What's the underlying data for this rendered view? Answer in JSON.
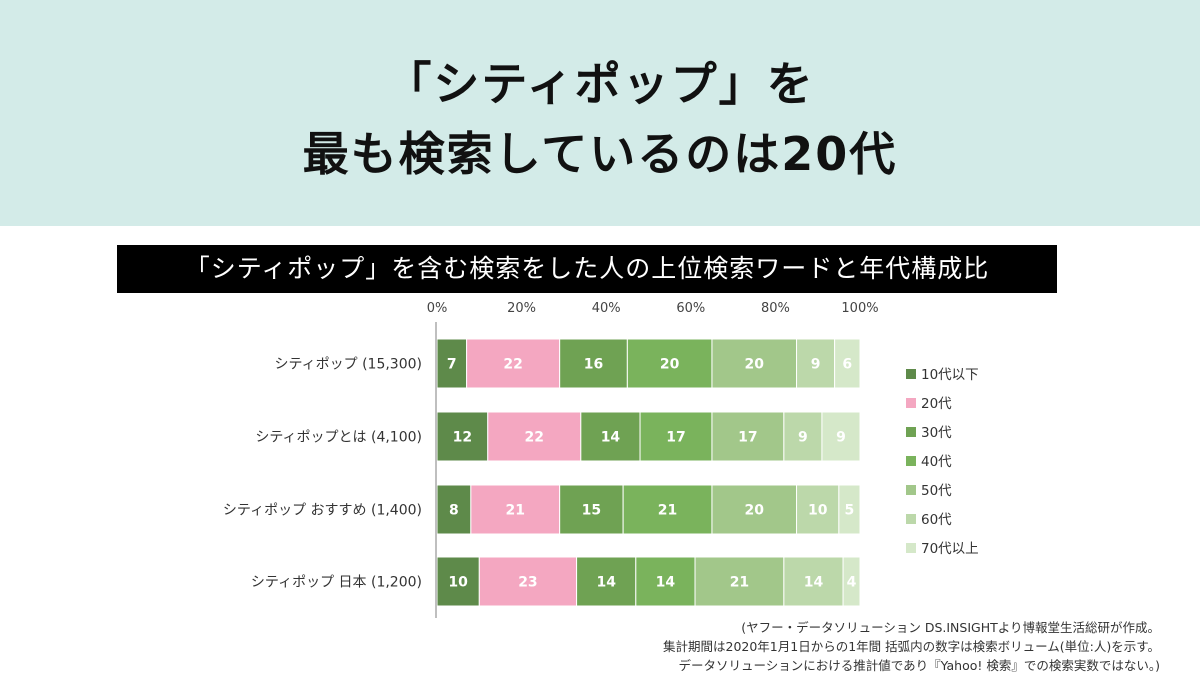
{
  "header": {
    "title_line1": "「シティポップ」を",
    "title_line2": "最も検索しているのは20代"
  },
  "chart_data": {
    "type": "bar",
    "orientation": "horizontal",
    "stacked": true,
    "title": "「シティポップ」を含む検索をした人の上位検索ワードと年代構成比",
    "categories": [
      "シティポップ (15,300)",
      "シティポップとは (4,100)",
      "シティポップ おすすめ (1,400)",
      "シティポップ 日本 (1,200)"
    ],
    "x_ticks": [
      "0%",
      "20%",
      "40%",
      "60%",
      "80%",
      "100%"
    ],
    "xlim": [
      0,
      100
    ],
    "series": [
      {
        "name": "10代以下",
        "color": "#5e8a4a",
        "values": [
          7,
          12,
          8,
          10
        ]
      },
      {
        "name": "20代",
        "color": "#f4a7c1",
        "values": [
          22,
          22,
          21,
          23
        ]
      },
      {
        "name": "30代",
        "color": "#6fa253",
        "values": [
          16,
          14,
          15,
          14
        ]
      },
      {
        "name": "40代",
        "color": "#7ab35c",
        "values": [
          20,
          17,
          21,
          14
        ]
      },
      {
        "name": "50代",
        "color": "#a2c78a",
        "values": [
          20,
          17,
          20,
          21
        ]
      },
      {
        "name": "60代",
        "color": "#bcd8aa",
        "values": [
          9,
          9,
          10,
          14
        ]
      },
      {
        "name": "70代以上",
        "color": "#d5e8c9",
        "values": [
          6,
          9,
          5,
          4
        ]
      }
    ],
    "legend_position": "right",
    "grid": false
  },
  "source": {
    "line1": "(ヤフー・データソリューション DS.INSIGHTより博報堂生活総研が作成。",
    "line2": "集計期間は2020年1月1日からの1年間 括弧内の数字は検索ボリューム(単位:人)を示す。",
    "line3": "データソリューションにおける推計値であり『Yahoo! 検索』での検索実数ではない。)"
  }
}
